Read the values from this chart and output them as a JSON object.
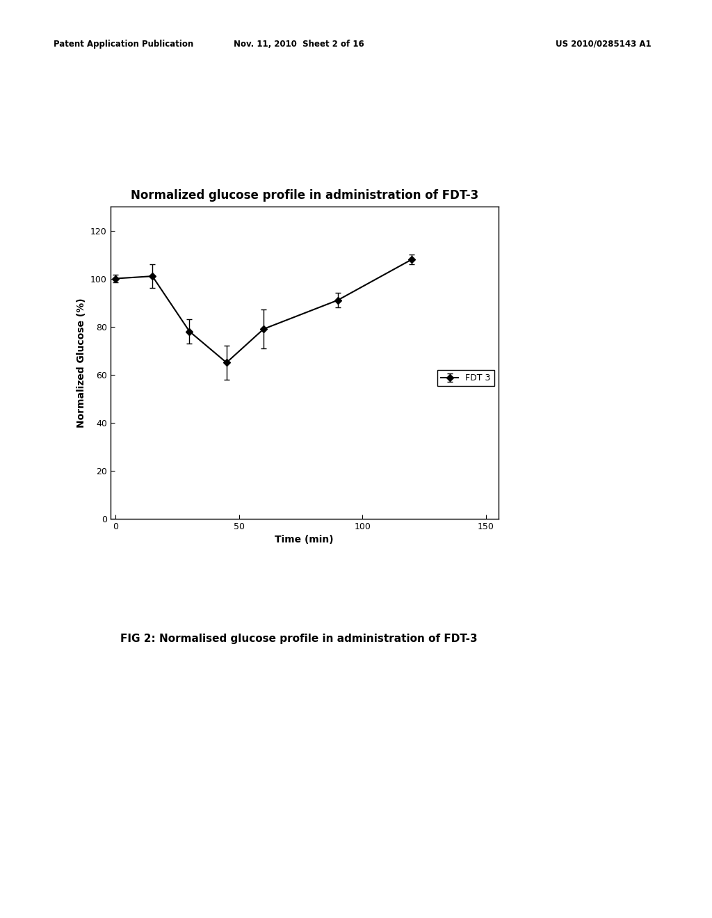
{
  "title": "Normalized glucose profile in administration of FDT-3",
  "xlabel": "Time (min)",
  "ylabel": "Normalized Glucose (%)",
  "fig_caption": "FIG 2: Normalised glucose profile in administration of FDT-3",
  "header_left": "Patent Application Publication",
  "header_mid": "Nov. 11, 2010  Sheet 2 of 16",
  "header_right": "US 2010/0285143 A1",
  "x_data": [
    0,
    15,
    30,
    45,
    60,
    90,
    120
  ],
  "y_data": [
    100,
    101,
    78,
    65,
    79,
    91,
    108
  ],
  "y_errors": [
    1.5,
    5,
    5,
    7,
    8,
    3,
    2
  ],
  "legend_label": "FDT 3",
  "xlim": [
    -2,
    155
  ],
  "ylim": [
    0,
    130
  ],
  "xticks": [
    0,
    50,
    100,
    150
  ],
  "yticks": [
    0,
    20,
    40,
    60,
    80,
    100,
    120
  ],
  "line_color": "#000000",
  "marker": "D",
  "marker_size": 5,
  "line_width": 1.5,
  "background_color": "#ffffff",
  "plot_bg_color": "#ffffff",
  "title_fontsize": 12,
  "axis_label_fontsize": 10,
  "tick_fontsize": 9,
  "legend_fontsize": 9,
  "caption_fontsize": 11,
  "header_fontsize": 8.5
}
